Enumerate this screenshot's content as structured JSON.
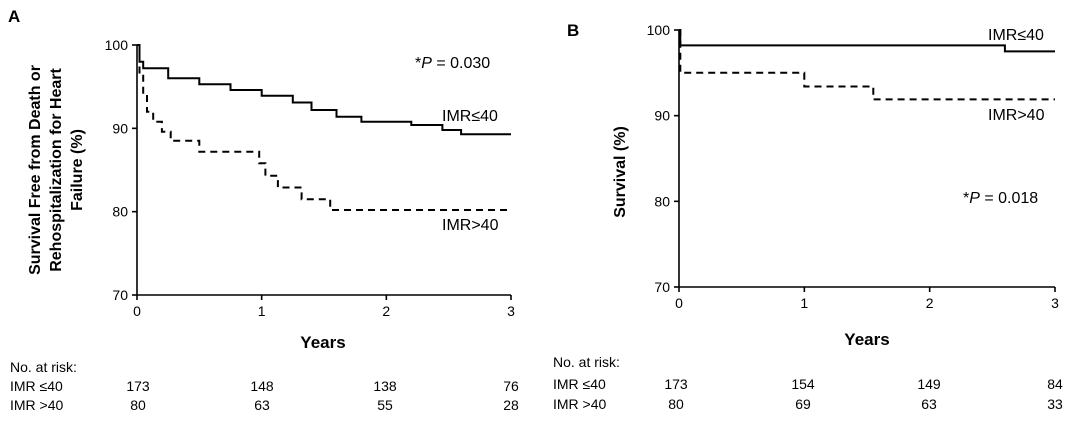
{
  "chart_data": [
    {
      "panel": "A",
      "type": "line",
      "xlabel": "Years",
      "ylabel_lines": [
        "Survival Free from Death or",
        "Rehospitalization for Heart",
        "Failure (%)"
      ],
      "xlim": [
        0,
        3
      ],
      "ylim": [
        70,
        100
      ],
      "xticks": [
        "0",
        "1",
        "2",
        "3"
      ],
      "yticks": [
        "70",
        "80",
        "90",
        "100"
      ],
      "p_label": "*P = 0.030",
      "series": [
        {
          "name": "IMR≤40",
          "style": "solid",
          "x": [
            0,
            0.02,
            0.02,
            0.05,
            0.05,
            0.25,
            0.25,
            0.5,
            0.5,
            0.75,
            0.75,
            1.0,
            1.0,
            1.25,
            1.25,
            1.4,
            1.4,
            1.6,
            1.6,
            1.8,
            1.8,
            2.2,
            2.2,
            2.45,
            2.45,
            2.6,
            2.6,
            3.0
          ],
          "y": [
            100,
            100,
            98,
            98,
            97.2,
            97.2,
            96,
            96,
            95.3,
            95.3,
            94.6,
            94.6,
            93.9,
            93.9,
            93.1,
            93.1,
            92.2,
            92.2,
            91.4,
            91.4,
            90.8,
            90.8,
            90.4,
            90.4,
            89.8,
            89.8,
            89.3,
            89.3
          ]
        },
        {
          "name": "IMR>40",
          "style": "dashed",
          "x": [
            0,
            0.02,
            0.02,
            0.05,
            0.05,
            0.08,
            0.08,
            0.13,
            0.13,
            0.2,
            0.2,
            0.27,
            0.27,
            0.5,
            0.5,
            0.98,
            0.98,
            1.03,
            1.03,
            1.13,
            1.13,
            1.32,
            1.32,
            1.55,
            1.55,
            3.0
          ],
          "y": [
            100,
            100,
            96.5,
            96.5,
            94,
            94,
            92,
            92,
            90.8,
            90.8,
            89.6,
            89.6,
            88.5,
            88.5,
            87.2,
            87.2,
            85.8,
            85.8,
            84.3,
            84.3,
            82.9,
            82.9,
            81.5,
            81.5,
            80.2,
            80.2
          ]
        }
      ],
      "risk_table": {
        "title": "No. at risk:",
        "rows": [
          {
            "label": "IMR ≤40",
            "values": [
              "173",
              "148",
              "138",
              "76"
            ]
          },
          {
            "label": "IMR >40",
            "values": [
              "80",
              "63",
              "55",
              "28"
            ]
          }
        ]
      }
    },
    {
      "panel": "B",
      "type": "line",
      "xlabel": "Years",
      "ylabel": "Survival (%)",
      "xlim": [
        0,
        3
      ],
      "ylim": [
        70,
        100
      ],
      "xticks": [
        "0",
        "1",
        "2",
        "3"
      ],
      "yticks": [
        "70",
        "80",
        "90",
        "100"
      ],
      "p_label": "*P = 0.018",
      "series": [
        {
          "name": "IMR≤40",
          "style": "solid",
          "x": [
            0,
            0.01,
            0.01,
            2.6,
            2.6,
            3.0
          ],
          "y": [
            100,
            100,
            98.2,
            98.2,
            97.5,
            97.5
          ]
        },
        {
          "name": "IMR>40",
          "style": "dashed",
          "x": [
            0,
            0.01,
            0.01,
            1.0,
            1.0,
            1.55,
            1.55,
            3.0
          ],
          "y": [
            100,
            100,
            95,
            95,
            93.4,
            93.4,
            91.9,
            91.9
          ]
        }
      ],
      "risk_table": {
        "title": "No. at risk:",
        "rows": [
          {
            "label": "IMR ≤40",
            "values": [
              "173",
              "154",
              "149",
              "84"
            ]
          },
          {
            "label": "IMR >40",
            "values": [
              "80",
              "69",
              "63",
              "33"
            ]
          }
        ]
      }
    }
  ]
}
